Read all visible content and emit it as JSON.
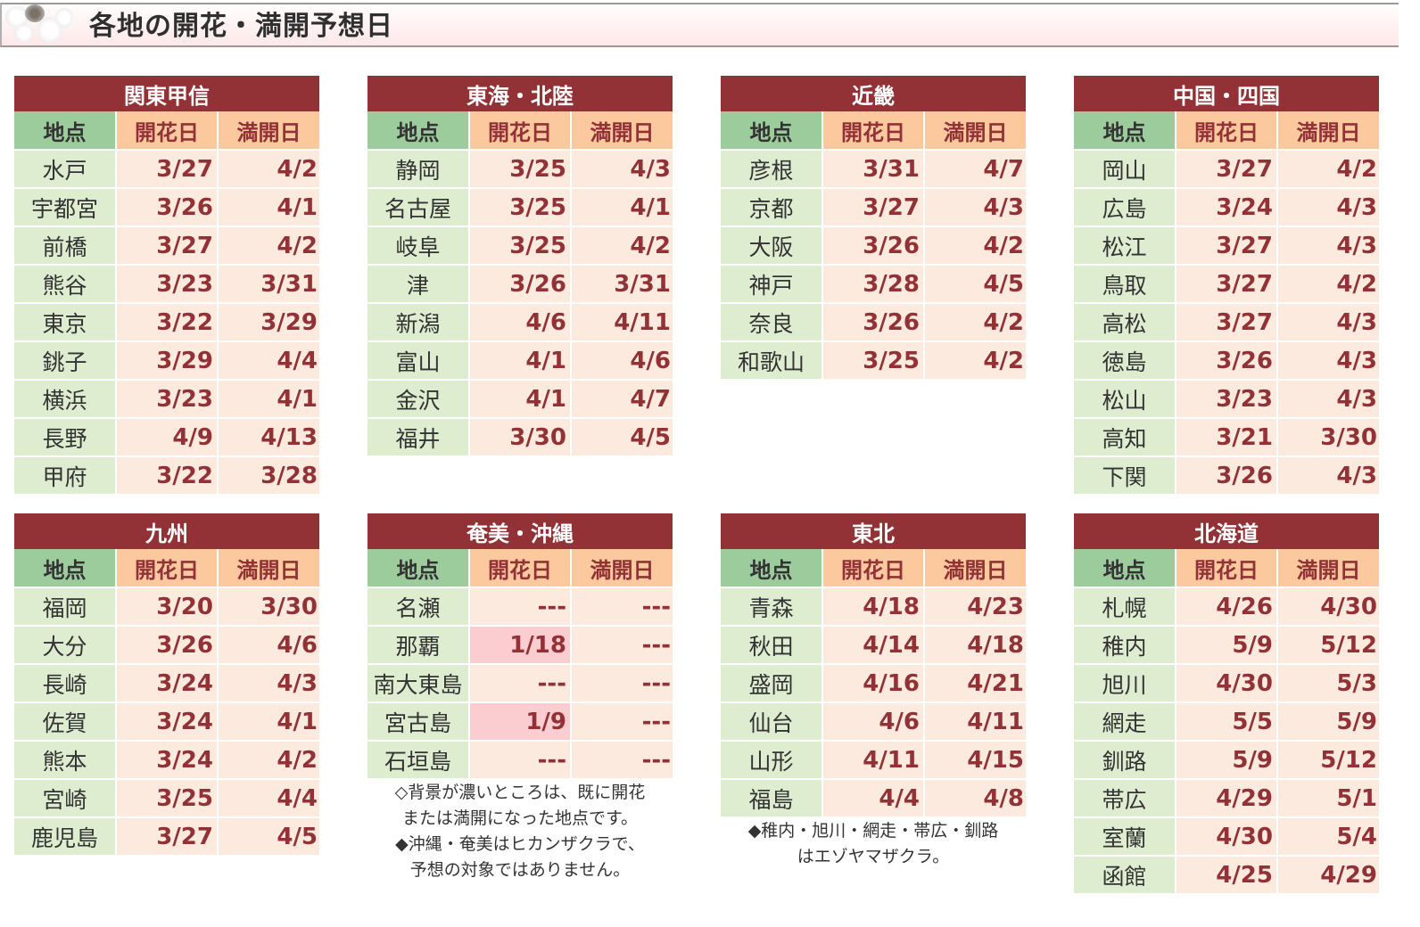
{
  "header": {
    "title": "各地の開花・満開予想日",
    "logo_icon": "cherry-blossom-icon"
  },
  "columns": {
    "point": "地点",
    "bloom": "開花日",
    "full": "満開日"
  },
  "colors": {
    "region_header_bg": "#923236",
    "point_header_bg": "#9ccb9c",
    "date_header_bg": "#fcc99f",
    "point_cell_bg": "#deecd0",
    "date_cell_bg": "#fdeadf",
    "done_cell_bg": "#fbcdd1",
    "date_text": "#923236"
  },
  "regions": [
    {
      "name": "関東甲信",
      "rows": [
        {
          "place": "水戸",
          "bloom": "3/27",
          "full": "4/2"
        },
        {
          "place": "宇都宮",
          "bloom": "3/26",
          "full": "4/1"
        },
        {
          "place": "前橋",
          "bloom": "3/27",
          "full": "4/2"
        },
        {
          "place": "熊谷",
          "bloom": "3/23",
          "full": "3/31"
        },
        {
          "place": "東京",
          "bloom": "3/22",
          "full": "3/29"
        },
        {
          "place": "銚子",
          "bloom": "3/29",
          "full": "4/4"
        },
        {
          "place": "横浜",
          "bloom": "3/23",
          "full": "4/1"
        },
        {
          "place": "長野",
          "bloom": "4/9",
          "full": "4/13"
        },
        {
          "place": "甲府",
          "bloom": "3/22",
          "full": "3/28"
        }
      ]
    },
    {
      "name": "東海・北陸",
      "rows": [
        {
          "place": "静岡",
          "bloom": "3/25",
          "full": "4/3"
        },
        {
          "place": "名古屋",
          "bloom": "3/25",
          "full": "4/1"
        },
        {
          "place": "岐阜",
          "bloom": "3/25",
          "full": "4/2"
        },
        {
          "place": "津",
          "bloom": "3/26",
          "full": "3/31"
        },
        {
          "place": "新潟",
          "bloom": "4/6",
          "full": "4/11"
        },
        {
          "place": "富山",
          "bloom": "4/1",
          "full": "4/6"
        },
        {
          "place": "金沢",
          "bloom": "4/1",
          "full": "4/7"
        },
        {
          "place": "福井",
          "bloom": "3/30",
          "full": "4/5"
        }
      ]
    },
    {
      "name": "近畿",
      "rows": [
        {
          "place": "彦根",
          "bloom": "3/31",
          "full": "4/7"
        },
        {
          "place": "京都",
          "bloom": "3/27",
          "full": "4/3"
        },
        {
          "place": "大阪",
          "bloom": "3/26",
          "full": "4/2"
        },
        {
          "place": "神戸",
          "bloom": "3/28",
          "full": "4/5"
        },
        {
          "place": "奈良",
          "bloom": "3/26",
          "full": "4/2"
        },
        {
          "place": "和歌山",
          "bloom": "3/25",
          "full": "4/2"
        }
      ]
    },
    {
      "name": "中国・四国",
      "rows": [
        {
          "place": "岡山",
          "bloom": "3/27",
          "full": "4/2"
        },
        {
          "place": "広島",
          "bloom": "3/24",
          "full": "4/3"
        },
        {
          "place": "松江",
          "bloom": "3/27",
          "full": "4/3"
        },
        {
          "place": "鳥取",
          "bloom": "3/27",
          "full": "4/2"
        },
        {
          "place": "高松",
          "bloom": "3/27",
          "full": "4/3"
        },
        {
          "place": "徳島",
          "bloom": "3/26",
          "full": "4/3"
        },
        {
          "place": "松山",
          "bloom": "3/23",
          "full": "4/3"
        },
        {
          "place": "高知",
          "bloom": "3/21",
          "full": "3/30"
        },
        {
          "place": "下関",
          "bloom": "3/26",
          "full": "4/3"
        }
      ]
    },
    {
      "name": "九州",
      "rows": [
        {
          "place": "福岡",
          "bloom": "3/20",
          "full": "3/30"
        },
        {
          "place": "大分",
          "bloom": "3/26",
          "full": "4/6"
        },
        {
          "place": "長崎",
          "bloom": "3/24",
          "full": "4/3"
        },
        {
          "place": "佐賀",
          "bloom": "3/24",
          "full": "4/1"
        },
        {
          "place": "熊本",
          "bloom": "3/24",
          "full": "4/2"
        },
        {
          "place": "宮崎",
          "bloom": "3/25",
          "full": "4/4"
        },
        {
          "place": "鹿児島",
          "bloom": "3/27",
          "full": "4/5"
        }
      ]
    },
    {
      "name": "奄美・沖縄",
      "rows": [
        {
          "place": "名瀬",
          "bloom": "---",
          "full": "---"
        },
        {
          "place": "那覇",
          "bloom": "1/18",
          "full": "---",
          "bloom_done": true
        },
        {
          "place": "南大東島",
          "bloom": "---",
          "full": "---"
        },
        {
          "place": "宮古島",
          "bloom": "1/9",
          "full": "---",
          "bloom_done": true
        },
        {
          "place": "石垣島",
          "bloom": "---",
          "full": "---"
        }
      ],
      "notes": [
        "◇背景が濃いところは、既に開花",
        "または満開になった地点です。",
        "◆沖縄・奄美はヒカンザクラで、",
        "予想の対象ではありません。"
      ]
    },
    {
      "name": "東北",
      "rows": [
        {
          "place": "青森",
          "bloom": "4/18",
          "full": "4/23"
        },
        {
          "place": "秋田",
          "bloom": "4/14",
          "full": "4/18"
        },
        {
          "place": "盛岡",
          "bloom": "4/16",
          "full": "4/21"
        },
        {
          "place": "仙台",
          "bloom": "4/6",
          "full": "4/11"
        },
        {
          "place": "山形",
          "bloom": "4/11",
          "full": "4/15"
        },
        {
          "place": "福島",
          "bloom": "4/4",
          "full": "4/8"
        }
      ],
      "notes": [
        "◆稚内・旭川・網走・帯広・釧路",
        "はエゾヤマザクラ。"
      ]
    },
    {
      "name": "北海道",
      "rows": [
        {
          "place": "札幌",
          "bloom": "4/26",
          "full": "4/30"
        },
        {
          "place": "稚内",
          "bloom": "5/9",
          "full": "5/12"
        },
        {
          "place": "旭川",
          "bloom": "4/30",
          "full": "5/3"
        },
        {
          "place": "網走",
          "bloom": "5/5",
          "full": "5/9"
        },
        {
          "place": "釧路",
          "bloom": "5/9",
          "full": "5/12"
        },
        {
          "place": "帯広",
          "bloom": "4/29",
          "full": "5/1"
        },
        {
          "place": "室蘭",
          "bloom": "4/30",
          "full": "5/4"
        },
        {
          "place": "函館",
          "bloom": "4/25",
          "full": "4/29"
        }
      ]
    }
  ]
}
